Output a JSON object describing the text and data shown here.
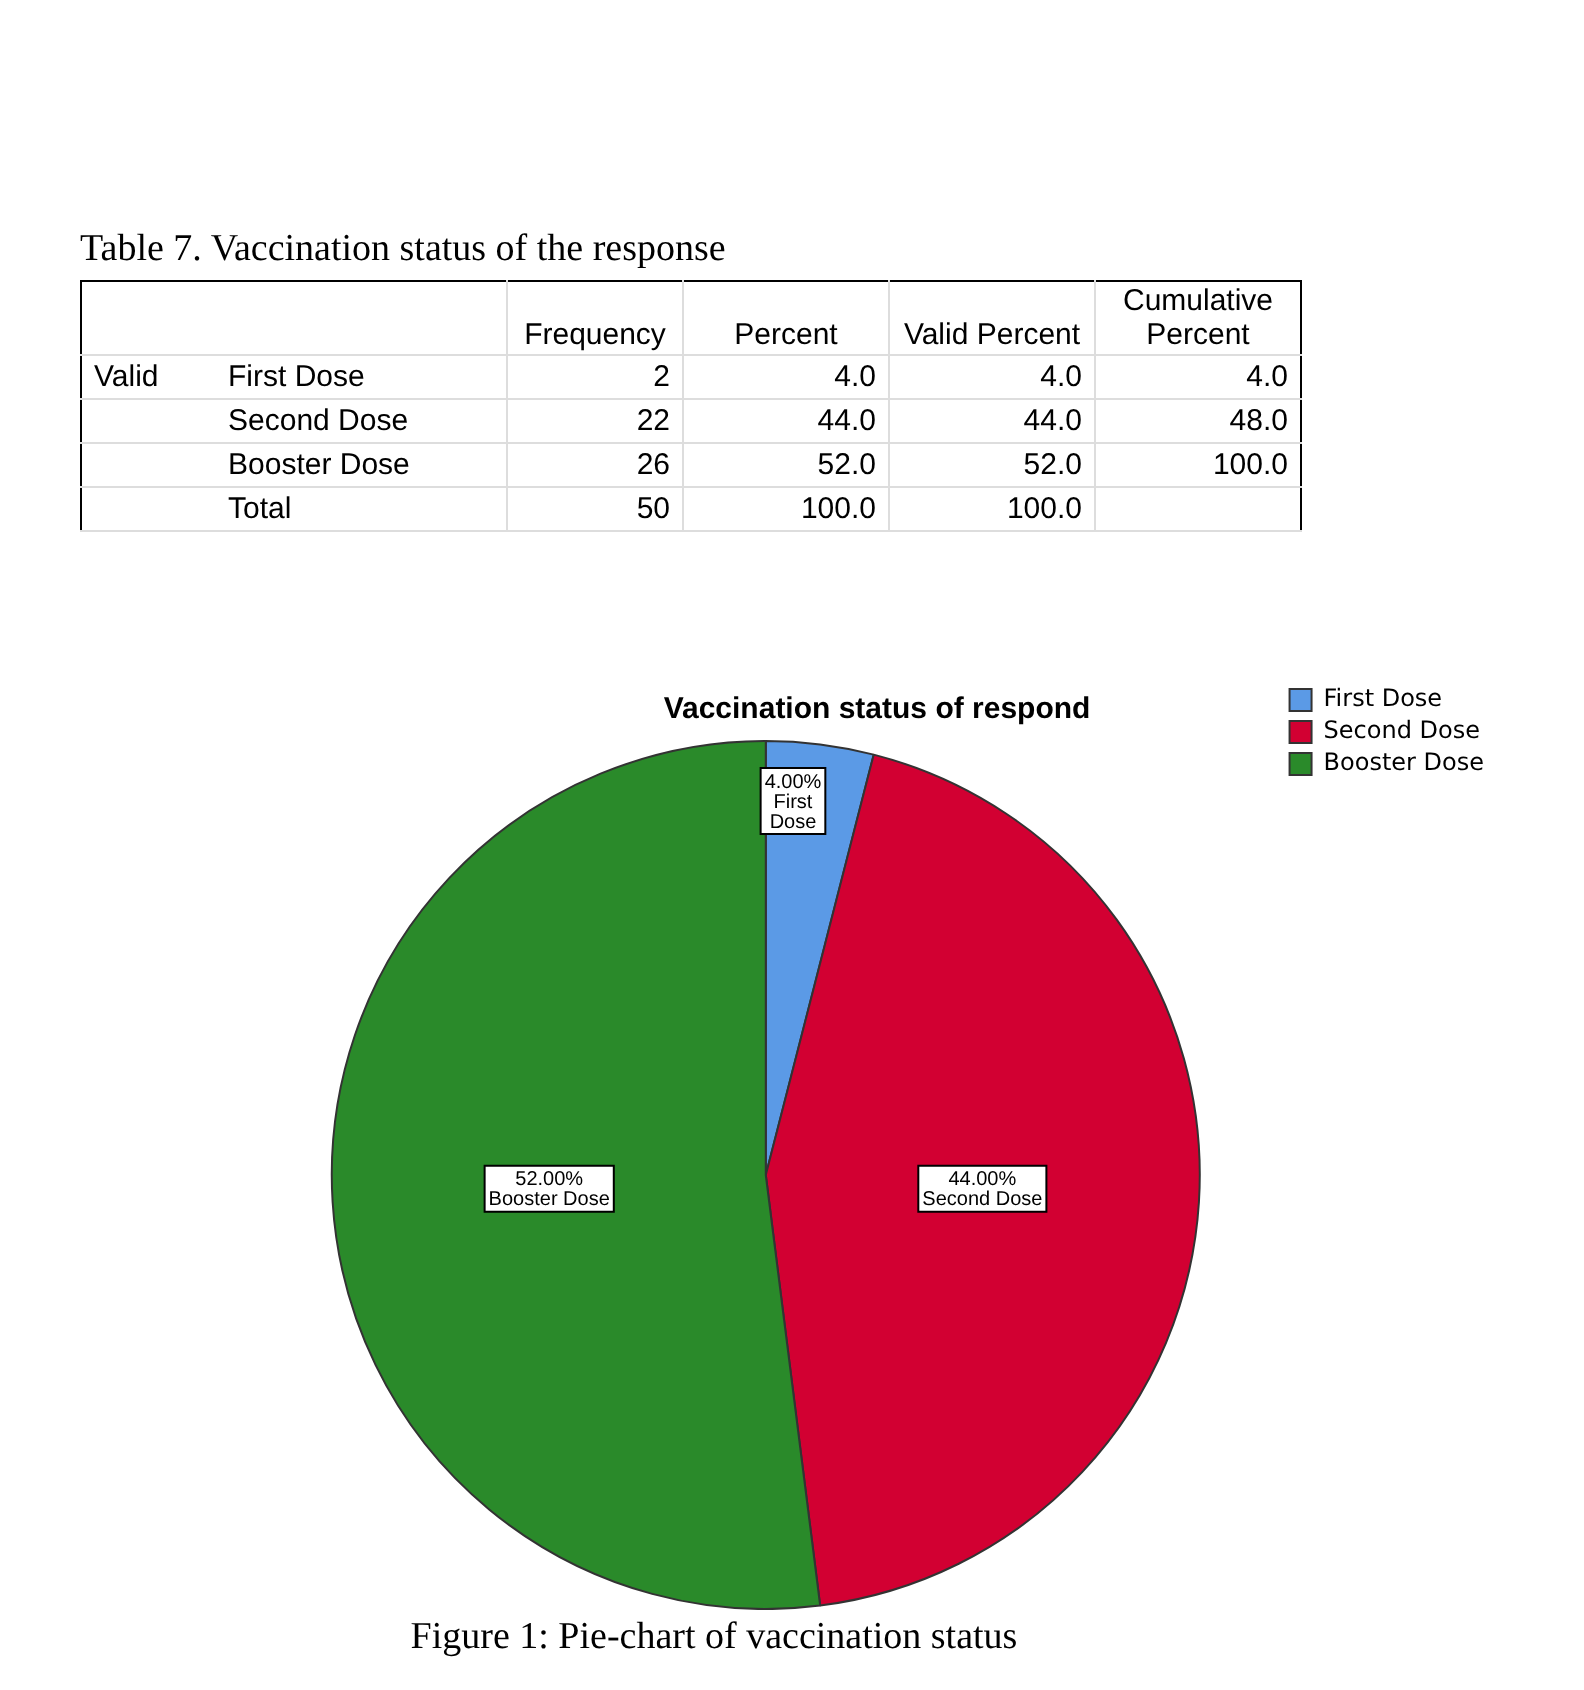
{
  "chart_data": [
    {
      "type": "other",
      "title": "Table 7. Vaccination status of the response",
      "annotations": [
        "Valid"
      ],
      "categories": [
        "Frequency",
        "Percent",
        "Valid Percent",
        "Cumulative Percent"
      ],
      "y_categories": [
        "First Dose",
        "Second Dose",
        "Booster Dose",
        "Total"
      ],
      "cell_labels": [
        [
          "2",
          "4.0",
          "4.0",
          "4.0"
        ],
        [
          "22",
          "44.0",
          "44.0",
          "48.0"
        ],
        [
          "26",
          "52.0",
          "52.0",
          "100.0"
        ],
        [
          "50",
          "100.0",
          "100.0",
          null
        ]
      ]
    },
    {
      "type": "pie",
      "title": "Vaccination status of respond",
      "categories": [
        "First Dose",
        "Second Dose",
        "Booster Dose"
      ],
      "values": [
        4,
        44,
        52
      ],
      "colors": [
        "#5b9ae6",
        "#d20032",
        "#2a8a2a"
      ],
      "value_labels": [
        "4.00%",
        "44.00%",
        "52.00%"
      ],
      "legend": "top right",
      "annotations": [
        "Figure 1: Pie-chart of vaccination status"
      ]
    }
  ]
}
